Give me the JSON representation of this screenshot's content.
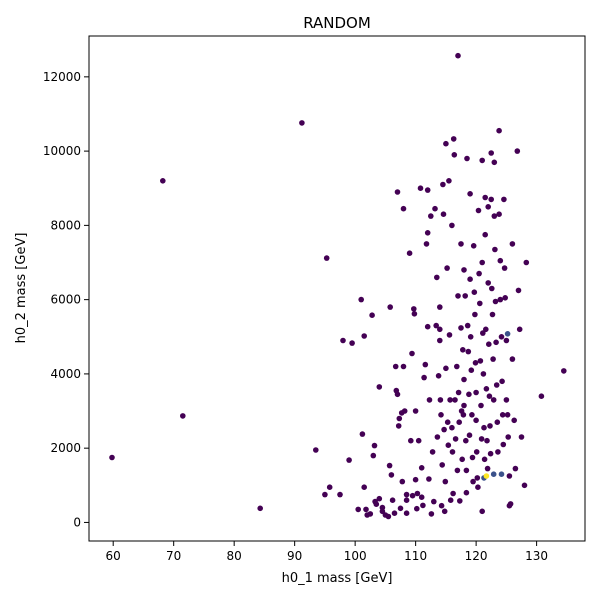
{
  "chart_data": {
    "type": "scatter",
    "title": "RANDOM",
    "xlabel": "h0_1 mass [GeV]",
    "ylabel": "h0_2 mass [GeV]",
    "xlim": [
      56,
      138
    ],
    "ylim": [
      -500,
      13100
    ],
    "xticks": [
      60,
      70,
      80,
      90,
      100,
      110,
      120,
      130
    ],
    "yticks": [
      0,
      2000,
      4000,
      6000,
      8000,
      10000,
      12000
    ],
    "grid": false,
    "legend": "none",
    "colors": {
      "primary": "#440154",
      "secondary": "#3b528b",
      "highlight": "#fde725"
    },
    "points": [
      [
        59.8,
        1750
      ],
      [
        68.2,
        9200
      ],
      [
        71.5,
        2870
      ],
      [
        84.3,
        380
      ],
      [
        91.2,
        10760
      ],
      [
        93.5,
        1950
      ],
      [
        95.3,
        7120
      ],
      [
        95.0,
        750
      ],
      [
        95.8,
        950
      ],
      [
        97.5,
        750
      ],
      [
        98.0,
        4900
      ],
      [
        99.0,
        1680
      ],
      [
        99.5,
        4830
      ],
      [
        100.5,
        350
      ],
      [
        101.0,
        6000
      ],
      [
        101.5,
        5020
      ],
      [
        101.2,
        2380
      ],
      [
        101.5,
        950
      ],
      [
        101.8,
        350
      ],
      [
        102.0,
        200
      ],
      [
        102.5,
        230
      ],
      [
        102.8,
        5580
      ],
      [
        103.0,
        1800
      ],
      [
        103.2,
        2070
      ],
      [
        103.3,
        560
      ],
      [
        103.5,
        490
      ],
      [
        104.0,
        640
      ],
      [
        104.5,
        400
      ],
      [
        104.0,
        3650
      ],
      [
        104.5,
        300
      ],
      [
        105.0,
        200
      ],
      [
        105.5,
        160
      ],
      [
        105.8,
        5800
      ],
      [
        105.7,
        1530
      ],
      [
        106.0,
        1280
      ],
      [
        106.2,
        600
      ],
      [
        106.5,
        250
      ],
      [
        106.7,
        4200
      ],
      [
        106.8,
        3550
      ],
      [
        107.0,
        3450
      ],
      [
        107.0,
        8900
      ],
      [
        107.2,
        2600
      ],
      [
        107.3,
        2800
      ],
      [
        107.5,
        380
      ],
      [
        107.7,
        2950
      ],
      [
        107.8,
        1100
      ],
      [
        108.0,
        4200
      ],
      [
        108.2,
        3000
      ],
      [
        108.0,
        8450
      ],
      [
        108.5,
        250
      ],
      [
        108.5,
        600
      ],
      [
        108.5,
        750
      ],
      [
        109.0,
        7250
      ],
      [
        109.2,
        2200
      ],
      [
        109.4,
        4550
      ],
      [
        109.5,
        720
      ],
      [
        109.7,
        5750
      ],
      [
        109.8,
        5620
      ],
      [
        110.0,
        3000
      ],
      [
        110.0,
        1150
      ],
      [
        110.2,
        370
      ],
      [
        110.3,
        780
      ],
      [
        110.5,
        2200
      ],
      [
        110.8,
        9000
      ],
      [
        111.0,
        1470
      ],
      [
        111.0,
        680
      ],
      [
        111.2,
        460
      ],
      [
        111.4,
        3900
      ],
      [
        111.6,
        4250
      ],
      [
        111.8,
        7500
      ],
      [
        112.0,
        7800
      ],
      [
        112.0,
        8950
      ],
      [
        112.0,
        5270
      ],
      [
        112.2,
        1170
      ],
      [
        112.3,
        3300
      ],
      [
        112.5,
        8250
      ],
      [
        112.6,
        230
      ],
      [
        112.8,
        1900
      ],
      [
        113.0,
        560
      ],
      [
        113.2,
        8450
      ],
      [
        113.4,
        5300
      ],
      [
        113.5,
        6600
      ],
      [
        113.6,
        2300
      ],
      [
        113.8,
        3950
      ],
      [
        114.0,
        5800
      ],
      [
        114.0,
        4900
      ],
      [
        114.0,
        5200
      ],
      [
        114.1,
        3300
      ],
      [
        114.2,
        2900
      ],
      [
        114.3,
        450
      ],
      [
        114.4,
        1550
      ],
      [
        114.5,
        9100
      ],
      [
        114.6,
        8300
      ],
      [
        114.7,
        2500
      ],
      [
        114.8,
        300
      ],
      [
        114.9,
        1100
      ],
      [
        115.0,
        10200
      ],
      [
        115.0,
        4150
      ],
      [
        115.2,
        6850
      ],
      [
        115.3,
        2700
      ],
      [
        115.4,
        2080
      ],
      [
        115.5,
        9200
      ],
      [
        115.6,
        5050
      ],
      [
        115.7,
        3300
      ],
      [
        115.8,
        600
      ],
      [
        116.0,
        8000
      ],
      [
        116.0,
        2550
      ],
      [
        116.1,
        1900
      ],
      [
        116.2,
        780
      ],
      [
        116.3,
        10330
      ],
      [
        116.4,
        9900
      ],
      [
        116.5,
        3300
      ],
      [
        116.6,
        2250
      ],
      [
        116.8,
        4200
      ],
      [
        116.9,
        1400
      ],
      [
        117.0,
        12570
      ],
      [
        117.0,
        6100
      ],
      [
        117.1,
        3500
      ],
      [
        117.2,
        2700
      ],
      [
        117.3,
        580
      ],
      [
        117.5,
        7500
      ],
      [
        117.5,
        5240
      ],
      [
        117.6,
        3000
      ],
      [
        117.7,
        1700
      ],
      [
        117.8,
        4650
      ],
      [
        117.9,
        2900
      ],
      [
        118.0,
        6800
      ],
      [
        118.0,
        3850
      ],
      [
        118.0,
        3150
      ],
      [
        118.2,
        6100
      ],
      [
        118.3,
        2200
      ],
      [
        118.4,
        1400
      ],
      [
        118.4,
        800
      ],
      [
        118.5,
        9800
      ],
      [
        118.6,
        5300
      ],
      [
        118.7,
        4600
      ],
      [
        118.8,
        3450
      ],
      [
        118.9,
        2350
      ],
      [
        119.0,
        8850
      ],
      [
        119.0,
        6550
      ],
      [
        119.1,
        5000
      ],
      [
        119.2,
        4100
      ],
      [
        119.3,
        2900
      ],
      [
        119.4,
        1750
      ],
      [
        119.5,
        1100
      ],
      [
        119.6,
        7450
      ],
      [
        119.7,
        6200
      ],
      [
        119.8,
        5600
      ],
      [
        119.9,
        4300
      ],
      [
        120.0,
        3500
      ],
      [
        120.0,
        2750
      ],
      [
        120.1,
        1900
      ],
      [
        120.2,
        1200
      ],
      [
        120.3,
        950
      ],
      [
        120.4,
        8400
      ],
      [
        120.5,
        6700
      ],
      [
        120.6,
        5900
      ],
      [
        120.7,
        4350
      ],
      [
        120.8,
        3150
      ],
      [
        120.9,
        2250
      ],
      [
        121.0,
        9750
      ],
      [
        121.0,
        7000
      ],
      [
        121.1,
        5100
      ],
      [
        121.2,
        4000
      ],
      [
        121.3,
        2550
      ],
      [
        121.4,
        1700
      ],
      [
        121.5,
        8750
      ],
      [
        121.5,
        7750
      ],
      [
        121.6,
        5200
      ],
      [
        121.7,
        3600
      ],
      [
        121.8,
        2200
      ],
      [
        121.9,
        1450
      ],
      [
        122.0,
        8500
      ],
      [
        122.0,
        6450
      ],
      [
        122.1,
        4800
      ],
      [
        122.2,
        3400
      ],
      [
        122.3,
        2600
      ],
      [
        122.4,
        1850
      ],
      [
        122.5,
        9950
      ],
      [
        122.5,
        8700
      ],
      [
        122.6,
        6300
      ],
      [
        122.7,
        5600
      ],
      [
        122.8,
        4400
      ],
      [
        122.9,
        3300
      ],
      [
        123.0,
        9700
      ],
      [
        123.0,
        8250
      ],
      [
        123.1,
        7350
      ],
      [
        123.2,
        5950
      ],
      [
        123.3,
        4850
      ],
      [
        123.4,
        3700
      ],
      [
        123.5,
        2700
      ],
      [
        123.6,
        1900
      ],
      [
        123.8,
        10550
      ],
      [
        123.8,
        8300
      ],
      [
        124.0,
        7050
      ],
      [
        124.0,
        6000
      ],
      [
        124.2,
        5000
      ],
      [
        124.3,
        3800
      ],
      [
        124.4,
        2900
      ],
      [
        124.5,
        2100
      ],
      [
        124.6,
        8700
      ],
      [
        124.7,
        6850
      ],
      [
        124.8,
        6050
      ],
      [
        125.0,
        4900
      ],
      [
        125.0,
        3300
      ],
      [
        125.2,
        2900
      ],
      [
        125.3,
        2300
      ],
      [
        125.5,
        1250
      ],
      [
        125.7,
        500
      ],
      [
        126.0,
        7500
      ],
      [
        126.0,
        4400
      ],
      [
        126.3,
        2750
      ],
      [
        126.5,
        1450
      ],
      [
        126.8,
        10000
      ],
      [
        127.0,
        6250
      ],
      [
        127.2,
        5200
      ],
      [
        127.5,
        2300
      ],
      [
        128.3,
        7000
      ],
      [
        128.0,
        1000
      ],
      [
        130.8,
        3400
      ],
      [
        134.5,
        4080
      ],
      [
        125.5,
        450
      ],
      [
        121.0,
        300
      ]
    ],
    "secondary_points": [
      [
        122.9,
        1300
      ],
      [
        124.2,
        1300
      ],
      [
        125.2,
        5080
      ],
      [
        121.3,
        1200
      ]
    ],
    "highlight_points": [
      [
        121.7,
        1250
      ]
    ]
  }
}
